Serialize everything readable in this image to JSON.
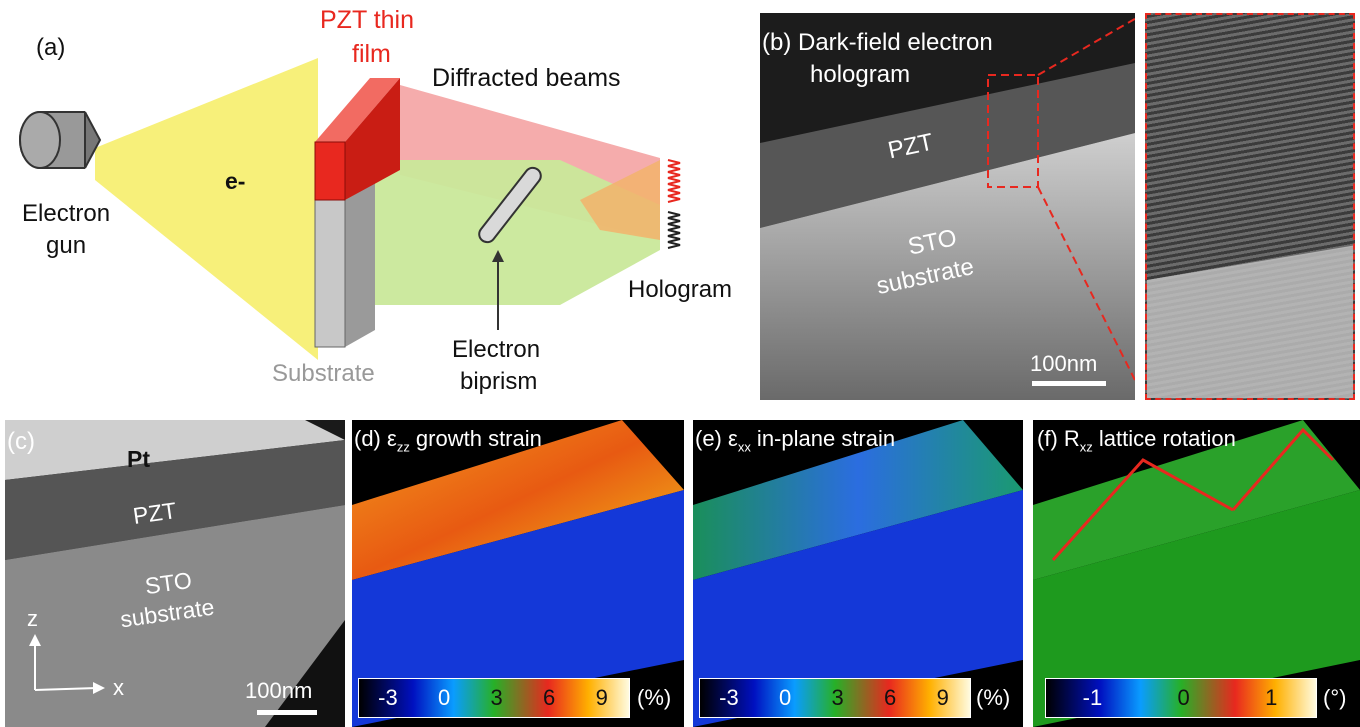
{
  "panel_a": {
    "tag": "(a)",
    "film_label_line1": "PZT thin",
    "film_label_line2": "film",
    "diffracted": "Diffracted beams",
    "electron": "e-",
    "gun_line1": "Electron",
    "gun_line2": "gun",
    "substrate": "Substrate",
    "biprism_line1": "Electron",
    "biprism_line2": "biprism",
    "hologram": "Hologram",
    "colors": {
      "film": "#e8281f",
      "substrate": "#c8c8c8",
      "beam": "#f7f07a",
      "diffracted_red": "#f4a3a3",
      "diffracted_green": "#c9e89a"
    }
  },
  "panel_b": {
    "tag_line1": "(b) Dark-field electron",
    "tag_line2": "hologram",
    "pzt": "PZT",
    "sto_line1": "STO",
    "sto_line2": "substrate",
    "scalebar": "100nm"
  },
  "panel_c": {
    "tag": "(c)",
    "pt": "Pt",
    "pzt": "PZT",
    "sto_line1": "STO",
    "sto_line2": "substrate",
    "axis_z": "z",
    "axis_x": "x",
    "scalebar": "100nm"
  },
  "panel_d": {
    "tag": "(d) ε",
    "sub": "zz",
    "rest": " growth strain",
    "ticks": [
      "-3",
      "0",
      "3",
      "6",
      "9"
    ],
    "unit": "(%)"
  },
  "panel_e": {
    "tag": "(e) ε",
    "sub": "xx",
    "rest": " in-plane strain",
    "ticks": [
      "-3",
      "0",
      "3",
      "6",
      "9"
    ],
    "unit": "(%)"
  },
  "panel_f": {
    "tag": "(f) R",
    "sub": "xz",
    "rest": " lattice rotation",
    "ticks": [
      "-1",
      "0",
      "1"
    ],
    "unit": "(°)"
  }
}
